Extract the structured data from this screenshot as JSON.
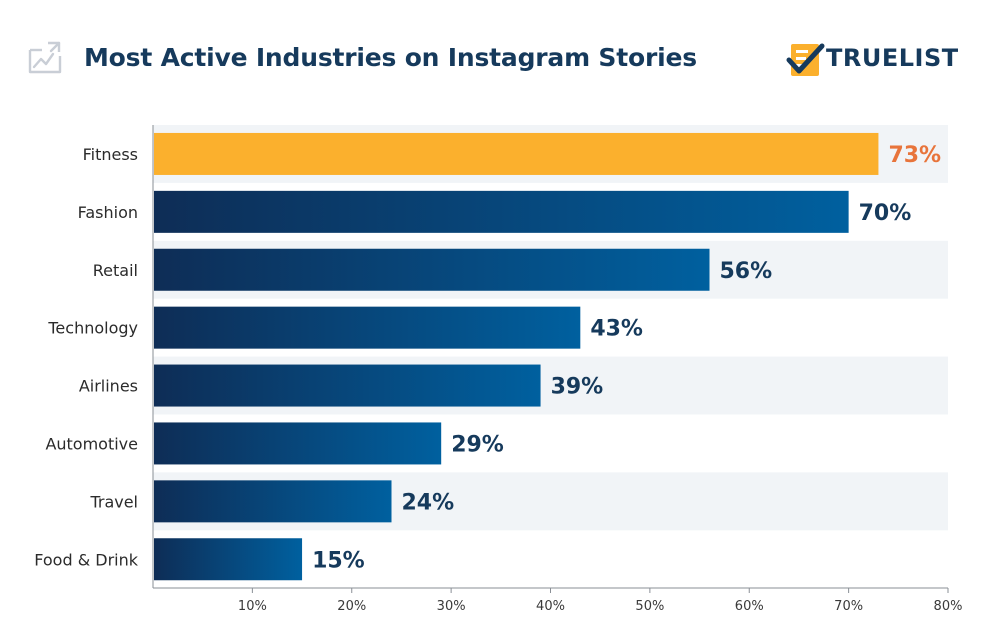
{
  "header": {
    "title": "Most Active Industries on Instagram Stories",
    "brand_name": "TRUELIST"
  },
  "colors": {
    "title": "#163a5c",
    "highlight_bar": "#fbb02d",
    "highlight_label": "#e8743b",
    "bar_dark": "#0e2d56",
    "bar_light": "#00609f",
    "value_label": "#163a5c",
    "band": "#f1f4f7"
  },
  "chart_data": {
    "type": "bar",
    "orientation": "horizontal",
    "title": "Most Active Industries on Instagram Stories",
    "categories": [
      "Fitness",
      "Fashion",
      "Retail",
      "Technology",
      "Airlines",
      "Automotive",
      "Travel",
      "Food & Drink"
    ],
    "values": [
      73,
      70,
      56,
      43,
      39,
      29,
      24,
      15
    ],
    "value_labels": [
      "73%",
      "70%",
      "56%",
      "43%",
      "39%",
      "29%",
      "24%",
      "15%"
    ],
    "highlighted_category": "Fitness",
    "xlim": [
      0,
      80
    ],
    "x_ticks": [
      10,
      20,
      30,
      40,
      50,
      60,
      70,
      80
    ],
    "x_tick_labels": [
      "10%",
      "20%",
      "30%",
      "40%",
      "50%",
      "60%",
      "70%",
      "80%"
    ],
    "xlabel": "",
    "ylabel": "",
    "grid": false,
    "legend": "none"
  }
}
